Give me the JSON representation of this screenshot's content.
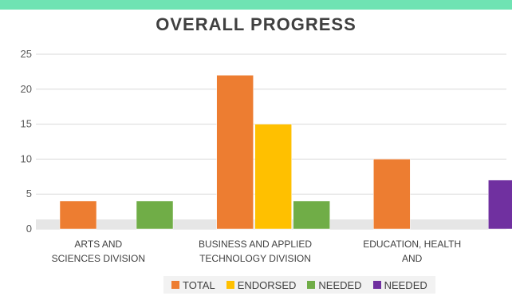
{
  "chart_data": {
    "type": "bar",
    "title": "OVERALL PROGRESS",
    "categories": [
      "ARTS AND SCIENCES DIVISION",
      "BUSINESS AND APPLIED TECHNOLOGY DIVISION",
      "EDUCATION, HEALTH AND"
    ],
    "series": [
      {
        "name": "TOTAL",
        "color": "#ed7d31",
        "values": [
          4,
          22,
          10
        ]
      },
      {
        "name": "ENDORSED",
        "color": "#ffc000",
        "values": [
          0,
          15,
          0
        ]
      },
      {
        "name": "NEEDED",
        "color": "#70ad47",
        "values": [
          4,
          4,
          0
        ]
      },
      {
        "name": "NEEDED",
        "color": "#7030a0",
        "values": [
          0,
          0,
          7
        ]
      }
    ],
    "y_ticks": [
      0,
      5,
      10,
      15,
      20,
      25
    ],
    "ylim": [
      0,
      25
    ],
    "grid": true,
    "legend_position": "bottom"
  }
}
